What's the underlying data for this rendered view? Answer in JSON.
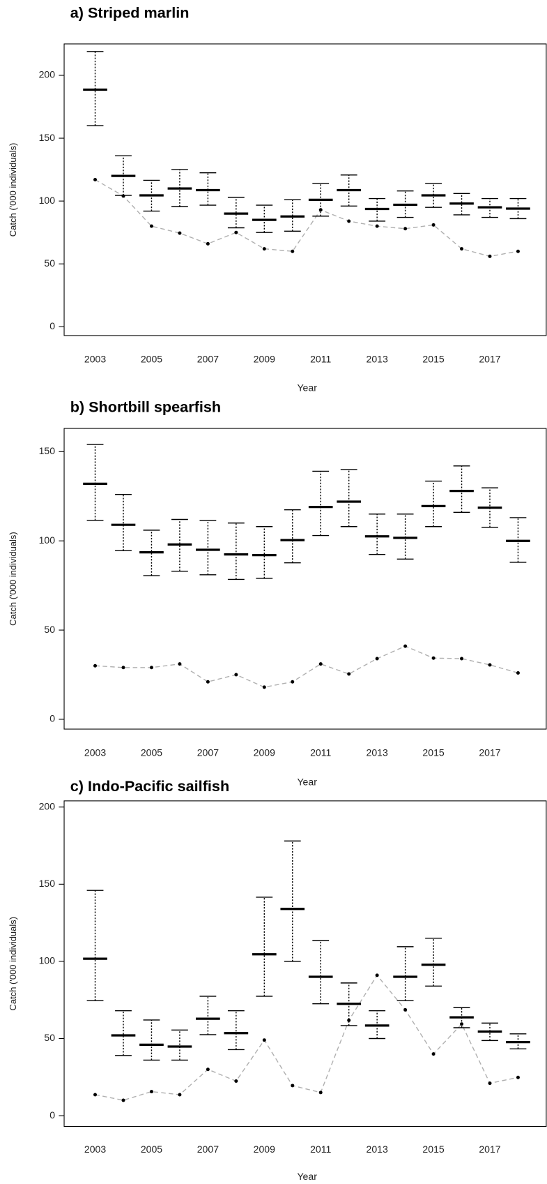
{
  "chart_data": [
    {
      "type": "errorbar",
      "title": "a) Striped marlin",
      "x_label": "Year",
      "y_label": "Catch ('000 individuals)",
      "x": [
        2003,
        2004,
        2005,
        2006,
        2007,
        2008,
        2009,
        2010,
        2011,
        2012,
        2013,
        2014,
        2015,
        2016,
        2017,
        2018
      ],
      "values": [
        188.6,
        120,
        104.5,
        110,
        108.7,
        90,
        85,
        87.7,
        101,
        108.7,
        93.7,
        97,
        104.5,
        98,
        95,
        94
      ],
      "lower": [
        160,
        104.5,
        92,
        95.5,
        96.7,
        78.7,
        75,
        76,
        88,
        96,
        84,
        87,
        95,
        89,
        87,
        86
      ],
      "upper": [
        219,
        136,
        116.5,
        125,
        122.5,
        103,
        96.7,
        101,
        114,
        120.7,
        102,
        108,
        114,
        106,
        102,
        102
      ],
      "observed": [
        117,
        104,
        80,
        74.5,
        66,
        75,
        62,
        60,
        93,
        84,
        80,
        78,
        81,
        62,
        56,
        60
      ],
      "color": "#000000",
      "observed_color": "#b0b0b0",
      "xlim": [
        2001.9,
        2019
      ],
      "xticks": [
        2003,
        2005,
        2007,
        2009,
        2011,
        2013,
        2015,
        2017
      ],
      "ylim": [
        -7,
        225
      ],
      "yticks": [
        0,
        50,
        100,
        150,
        200
      ]
    },
    {
      "type": "errorbar",
      "title": "b) Shortbill spearfish",
      "x_label": "Year",
      "y_label": "Catch ('000 individuals)",
      "x": [
        2003,
        2004,
        2005,
        2006,
        2007,
        2008,
        2009,
        2010,
        2011,
        2012,
        2013,
        2014,
        2015,
        2016,
        2017,
        2018
      ],
      "values": [
        132,
        109,
        93.6,
        98,
        95,
        92.4,
        92,
        100.4,
        119,
        122,
        102.5,
        101.7,
        119.5,
        128,
        118.6,
        100
      ],
      "lower": [
        111.5,
        94.5,
        80.5,
        83,
        81,
        78.4,
        79,
        87.7,
        103,
        108,
        92.4,
        89.8,
        108,
        116,
        107.6,
        88
      ],
      "upper": [
        154,
        126,
        106,
        112,
        111.4,
        110,
        108,
        117.4,
        139,
        140,
        115,
        115,
        133.5,
        142,
        129.7,
        113
      ],
      "observed": [
        30,
        29,
        29,
        31,
        21,
        25,
        18,
        21,
        31,
        25.4,
        34,
        41,
        34.3,
        34,
        30.5,
        26
      ],
      "color": "#000000",
      "observed_color": "#b0b0b0",
      "xlim": [
        2001.9,
        2019
      ],
      "xticks": [
        2003,
        2005,
        2007,
        2009,
        2011,
        2013,
        2015,
        2017
      ],
      "ylim": [
        -5.5,
        163
      ],
      "yticks": [
        0,
        50,
        100,
        150
      ]
    },
    {
      "type": "errorbar",
      "title": "c) Indo-Pacific sailfish",
      "x_label": "Year",
      "y_label": "Catch ('000 individuals)",
      "x": [
        2003,
        2004,
        2005,
        2006,
        2007,
        2008,
        2009,
        2010,
        2011,
        2012,
        2013,
        2014,
        2015,
        2016,
        2017,
        2018
      ],
      "values": [
        101.7,
        52,
        46,
        44.8,
        62.8,
        53.5,
        104.6,
        134,
        90,
        72.5,
        58.4,
        90,
        97.8,
        63.7,
        54.5,
        47.7
      ],
      "lower": [
        74.5,
        39,
        36,
        36,
        52.5,
        42.8,
        77.4,
        100,
        72.5,
        58.4,
        50,
        74.5,
        84,
        57,
        48.7,
        43.3
      ],
      "upper": [
        146,
        68,
        62,
        55.5,
        77.4,
        68,
        141.6,
        178,
        113.4,
        86,
        68,
        109.5,
        115,
        70,
        60,
        53
      ],
      "observed": [
        13.6,
        10,
        15.6,
        13.6,
        30,
        22.4,
        49,
        19.5,
        15,
        61.8,
        91,
        68.6,
        40,
        59.4,
        21,
        24.8
      ],
      "color": "#000000",
      "observed_color": "#b0b0b0",
      "xlim": [
        2001.9,
        2019
      ],
      "xticks": [
        2003,
        2005,
        2007,
        2009,
        2011,
        2013,
        2015,
        2017
      ],
      "ylim": [
        -7,
        204
      ],
      "yticks": [
        0,
        50,
        100,
        150,
        200
      ]
    }
  ]
}
